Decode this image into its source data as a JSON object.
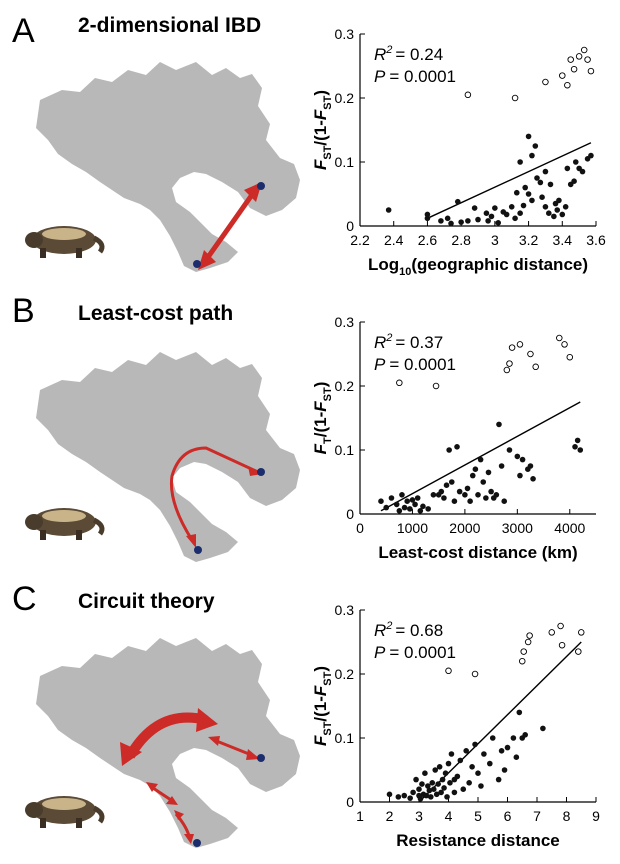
{
  "figure": {
    "panels": [
      {
        "letter": "A",
        "title": "2-dimensional IBD"
      },
      {
        "letter": "B",
        "title": "Least-cost path"
      },
      {
        "letter": "C",
        "title": "Circuit theory"
      }
    ]
  },
  "colors": {
    "land": "#b8b8b8",
    "arrow": "#cc2b27",
    "site": "#1c2d6e",
    "points": "#111111"
  },
  "icons": {
    "map": "landmass-map",
    "animal": "wolverine-illustration"
  },
  "chart_data": [
    {
      "type": "scatter",
      "ylabel_parts": [
        "F",
        "ST",
        "/(1-",
        "F",
        "ST",
        ")"
      ],
      "xlabel": "Log",
      "xlabel_sub": "10",
      "xlabel_tail": "(geographic distance)",
      "stat_r2": "= 0.24",
      "stat_p": "= 0.0001",
      "xlim": [
        2.2,
        3.6
      ],
      "ylim": [
        0,
        0.3
      ],
      "xticks": [
        "2.2",
        "2.4",
        "2.6",
        "2.8",
        "3",
        "3.2",
        "3.4",
        "3.6"
      ],
      "yticks": [
        "0",
        "0.1",
        "0.2",
        "0.3"
      ],
      "trend": {
        "x": [
          2.6,
          3.57
        ],
        "y": [
          0.012,
          0.13
        ]
      },
      "series": [
        {
          "name": "filled",
          "style": "filled",
          "points": [
            [
              2.37,
              0.025
            ],
            [
              2.6,
              0.018
            ],
            [
              2.6,
              0.012
            ],
            [
              2.68,
              0.008
            ],
            [
              2.72,
              0.012
            ],
            [
              2.74,
              0.004
            ],
            [
              2.78,
              0.038
            ],
            [
              2.8,
              0.006
            ],
            [
              2.84,
              0.008
            ],
            [
              2.88,
              0.028
            ],
            [
              2.9,
              0.01
            ],
            [
              2.95,
              0.02
            ],
            [
              2.96,
              0.008
            ],
            [
              2.98,
              0.015
            ],
            [
              3.0,
              0.028
            ],
            [
              3.02,
              0.005
            ],
            [
              3.05,
              0.022
            ],
            [
              3.07,
              0.018
            ],
            [
              3.1,
              0.03
            ],
            [
              3.12,
              0.012
            ],
            [
              3.13,
              0.052
            ],
            [
              3.15,
              0.02
            ],
            [
              3.15,
              0.1
            ],
            [
              3.17,
              0.032
            ],
            [
              3.2,
              0.14
            ],
            [
              3.22,
              0.11
            ],
            [
              3.24,
              0.125
            ],
            [
              3.18,
              0.06
            ],
            [
              3.2,
              0.05
            ],
            [
              3.22,
              0.04
            ],
            [
              3.25,
              0.075
            ],
            [
              3.27,
              0.068
            ],
            [
              3.28,
              0.045
            ],
            [
              3.3,
              0.03
            ],
            [
              3.32,
              0.02
            ],
            [
              3.33,
              0.065
            ],
            [
              3.35,
              0.015
            ],
            [
              3.37,
              0.025
            ],
            [
              3.38,
              0.04
            ],
            [
              3.4,
              0.018
            ],
            [
              3.42,
              0.03
            ],
            [
              3.43,
              0.09
            ],
            [
              3.45,
              0.065
            ],
            [
              3.47,
              0.07
            ],
            [
              3.48,
              0.1
            ],
            [
              3.5,
              0.09
            ],
            [
              3.52,
              0.085
            ],
            [
              3.55,
              0.105
            ],
            [
              3.57,
              0.11
            ],
            [
              3.3,
              0.085
            ],
            [
              3.36,
              0.035
            ]
          ]
        },
        {
          "name": "open",
          "style": "open",
          "points": [
            [
              2.84,
              0.205
            ],
            [
              3.12,
              0.2
            ],
            [
              3.3,
              0.225
            ],
            [
              3.4,
              0.235
            ],
            [
              3.43,
              0.22
            ],
            [
              3.45,
              0.26
            ],
            [
              3.47,
              0.245
            ],
            [
              3.5,
              0.265
            ],
            [
              3.53,
              0.275
            ],
            [
              3.55,
              0.26
            ],
            [
              3.57,
              0.242
            ]
          ]
        }
      ]
    },
    {
      "type": "scatter",
      "ylabel_parts": [
        "F",
        "T",
        "/(1-",
        "F",
        "ST",
        ")"
      ],
      "xlabel": "Least-cost distance (km)",
      "xlabel_sub": "",
      "xlabel_tail": "",
      "stat_r2": "= 0.37",
      "stat_p": "= 0.0001",
      "xlim": [
        0,
        4500
      ],
      "ylim": [
        0,
        0.3
      ],
      "xticks": [
        "0",
        "1000",
        "2000",
        "3000",
        "4000"
      ],
      "yticks": [
        "0",
        "0.1",
        "0.2",
        "0.3"
      ],
      "trend": {
        "x": [
          400,
          4200
        ],
        "y": [
          0.005,
          0.175
        ]
      },
      "series": [
        {
          "name": "filled",
          "style": "filled",
          "points": [
            [
              400,
              0.02
            ],
            [
              500,
              0.01
            ],
            [
              600,
              0.025
            ],
            [
              700,
              0.015
            ],
            [
              750,
              0.005
            ],
            [
              800,
              0.03
            ],
            [
              850,
              0.01
            ],
            [
              900,
              0.02
            ],
            [
              950,
              0.008
            ],
            [
              1000,
              0.022
            ],
            [
              1050,
              0.015
            ],
            [
              1100,
              0.025
            ],
            [
              1150,
              0.005
            ],
            [
              1200,
              0.012
            ],
            [
              1300,
              0.008
            ],
            [
              1400,
              0.03
            ],
            [
              1500,
              0.03
            ],
            [
              1550,
              0.035
            ],
            [
              1600,
              0.025
            ],
            [
              1650,
              0.045
            ],
            [
              1700,
              0.1
            ],
            [
              1750,
              0.05
            ],
            [
              1800,
              0.02
            ],
            [
              1850,
              0.105
            ],
            [
              1900,
              0.035
            ],
            [
              2000,
              0.03
            ],
            [
              2050,
              0.04
            ],
            [
              2100,
              0.02
            ],
            [
              2150,
              0.06
            ],
            [
              2200,
              0.07
            ],
            [
              2250,
              0.03
            ],
            [
              2300,
              0.085
            ],
            [
              2350,
              0.05
            ],
            [
              2400,
              0.025
            ],
            [
              2450,
              0.065
            ],
            [
              2500,
              0.035
            ],
            [
              2550,
              0.025
            ],
            [
              2600,
              0.03
            ],
            [
              2650,
              0.14
            ],
            [
              2700,
              0.075
            ],
            [
              2750,
              0.02
            ],
            [
              2850,
              0.1
            ],
            [
              3000,
              0.09
            ],
            [
              3050,
              0.06
            ],
            [
              3100,
              0.085
            ],
            [
              3200,
              0.07
            ],
            [
              3250,
              0.075
            ],
            [
              3300,
              0.055
            ],
            [
              4100,
              0.105
            ],
            [
              4150,
              0.115
            ],
            [
              4200,
              0.1
            ]
          ]
        },
        {
          "name": "open",
          "style": "open",
          "points": [
            [
              750,
              0.205
            ],
            [
              1450,
              0.2
            ],
            [
              2800,
              0.225
            ],
            [
              2850,
              0.235
            ],
            [
              2900,
              0.26
            ],
            [
              3050,
              0.265
            ],
            [
              3250,
              0.25
            ],
            [
              3350,
              0.23
            ],
            [
              3800,
              0.275
            ],
            [
              3900,
              0.265
            ],
            [
              4000,
              0.245
            ]
          ]
        }
      ]
    },
    {
      "type": "scatter",
      "ylabel_parts": [
        "F",
        "ST",
        "/(1-",
        "F",
        "ST",
        ")"
      ],
      "xlabel": "Resistance distance",
      "xlabel_sub": "",
      "xlabel_tail": "",
      "stat_r2": "= 0.68",
      "stat_p": "= 0.0001",
      "xlim": [
        1,
        9
      ],
      "ylim": [
        0,
        0.3
      ],
      "xticks": [
        "1",
        "2",
        "3",
        "4",
        "5",
        "6",
        "7",
        "8",
        "9"
      ],
      "yticks": [
        "0",
        "0.1",
        "0.2",
        "0.3"
      ],
      "trend": {
        "x": [
          3.0,
          8.5
        ],
        "y": [
          0.0,
          0.25
        ]
      },
      "series": [
        {
          "name": "filled",
          "style": "filled",
          "points": [
            [
              2.0,
              0.012
            ],
            [
              2.3,
              0.008
            ],
            [
              2.5,
              0.01
            ],
            [
              2.7,
              0.006
            ],
            [
              2.8,
              0.015
            ],
            [
              2.9,
              0.035
            ],
            [
              3.0,
              0.02
            ],
            [
              3.05,
              0.005
            ],
            [
              3.1,
              0.028
            ],
            [
              3.15,
              0.012
            ],
            [
              3.2,
              0.045
            ],
            [
              3.25,
              0.01
            ],
            [
              3.3,
              0.025
            ],
            [
              3.35,
              0.018
            ],
            [
              3.4,
              0.008
            ],
            [
              3.45,
              0.03
            ],
            [
              3.5,
              0.02
            ],
            [
              3.55,
              0.05
            ],
            [
              3.6,
              0.012
            ],
            [
              3.65,
              0.028
            ],
            [
              3.7,
              0.055
            ],
            [
              3.75,
              0.015
            ],
            [
              3.8,
              0.035
            ],
            [
              3.85,
              0.022
            ],
            [
              3.9,
              0.045
            ],
            [
              3.95,
              0.008
            ],
            [
              4.0,
              0.06
            ],
            [
              4.05,
              0.03
            ],
            [
              4.1,
              0.075
            ],
            [
              4.2,
              0.015
            ],
            [
              4.3,
              0.04
            ],
            [
              4.4,
              0.065
            ],
            [
              4.5,
              0.02
            ],
            [
              4.6,
              0.08
            ],
            [
              4.7,
              0.03
            ],
            [
              4.8,
              0.055
            ],
            [
              4.9,
              0.09
            ],
            [
              5.0,
              0.045
            ],
            [
              5.1,
              0.025
            ],
            [
              5.2,
              0.075
            ],
            [
              5.4,
              0.06
            ],
            [
              5.5,
              0.1
            ],
            [
              5.7,
              0.035
            ],
            [
              5.8,
              0.08
            ],
            [
              5.9,
              0.05
            ],
            [
              6.0,
              0.085
            ],
            [
              6.2,
              0.1
            ],
            [
              6.3,
              0.07
            ],
            [
              6.4,
              0.14
            ],
            [
              6.5,
              0.1
            ],
            [
              6.6,
              0.105
            ],
            [
              7.2,
              0.115
            ],
            [
              4.2,
              0.035
            ],
            [
              3.0,
              0.01
            ]
          ]
        },
        {
          "name": "open",
          "style": "open",
          "points": [
            [
              4.0,
              0.205
            ],
            [
              4.9,
              0.2
            ],
            [
              6.5,
              0.22
            ],
            [
              6.55,
              0.235
            ],
            [
              6.7,
              0.25
            ],
            [
              6.75,
              0.26
            ],
            [
              7.5,
              0.265
            ],
            [
              7.8,
              0.275
            ],
            [
              7.85,
              0.245
            ],
            [
              8.4,
              0.235
            ],
            [
              8.5,
              0.265
            ]
          ]
        }
      ]
    }
  ]
}
